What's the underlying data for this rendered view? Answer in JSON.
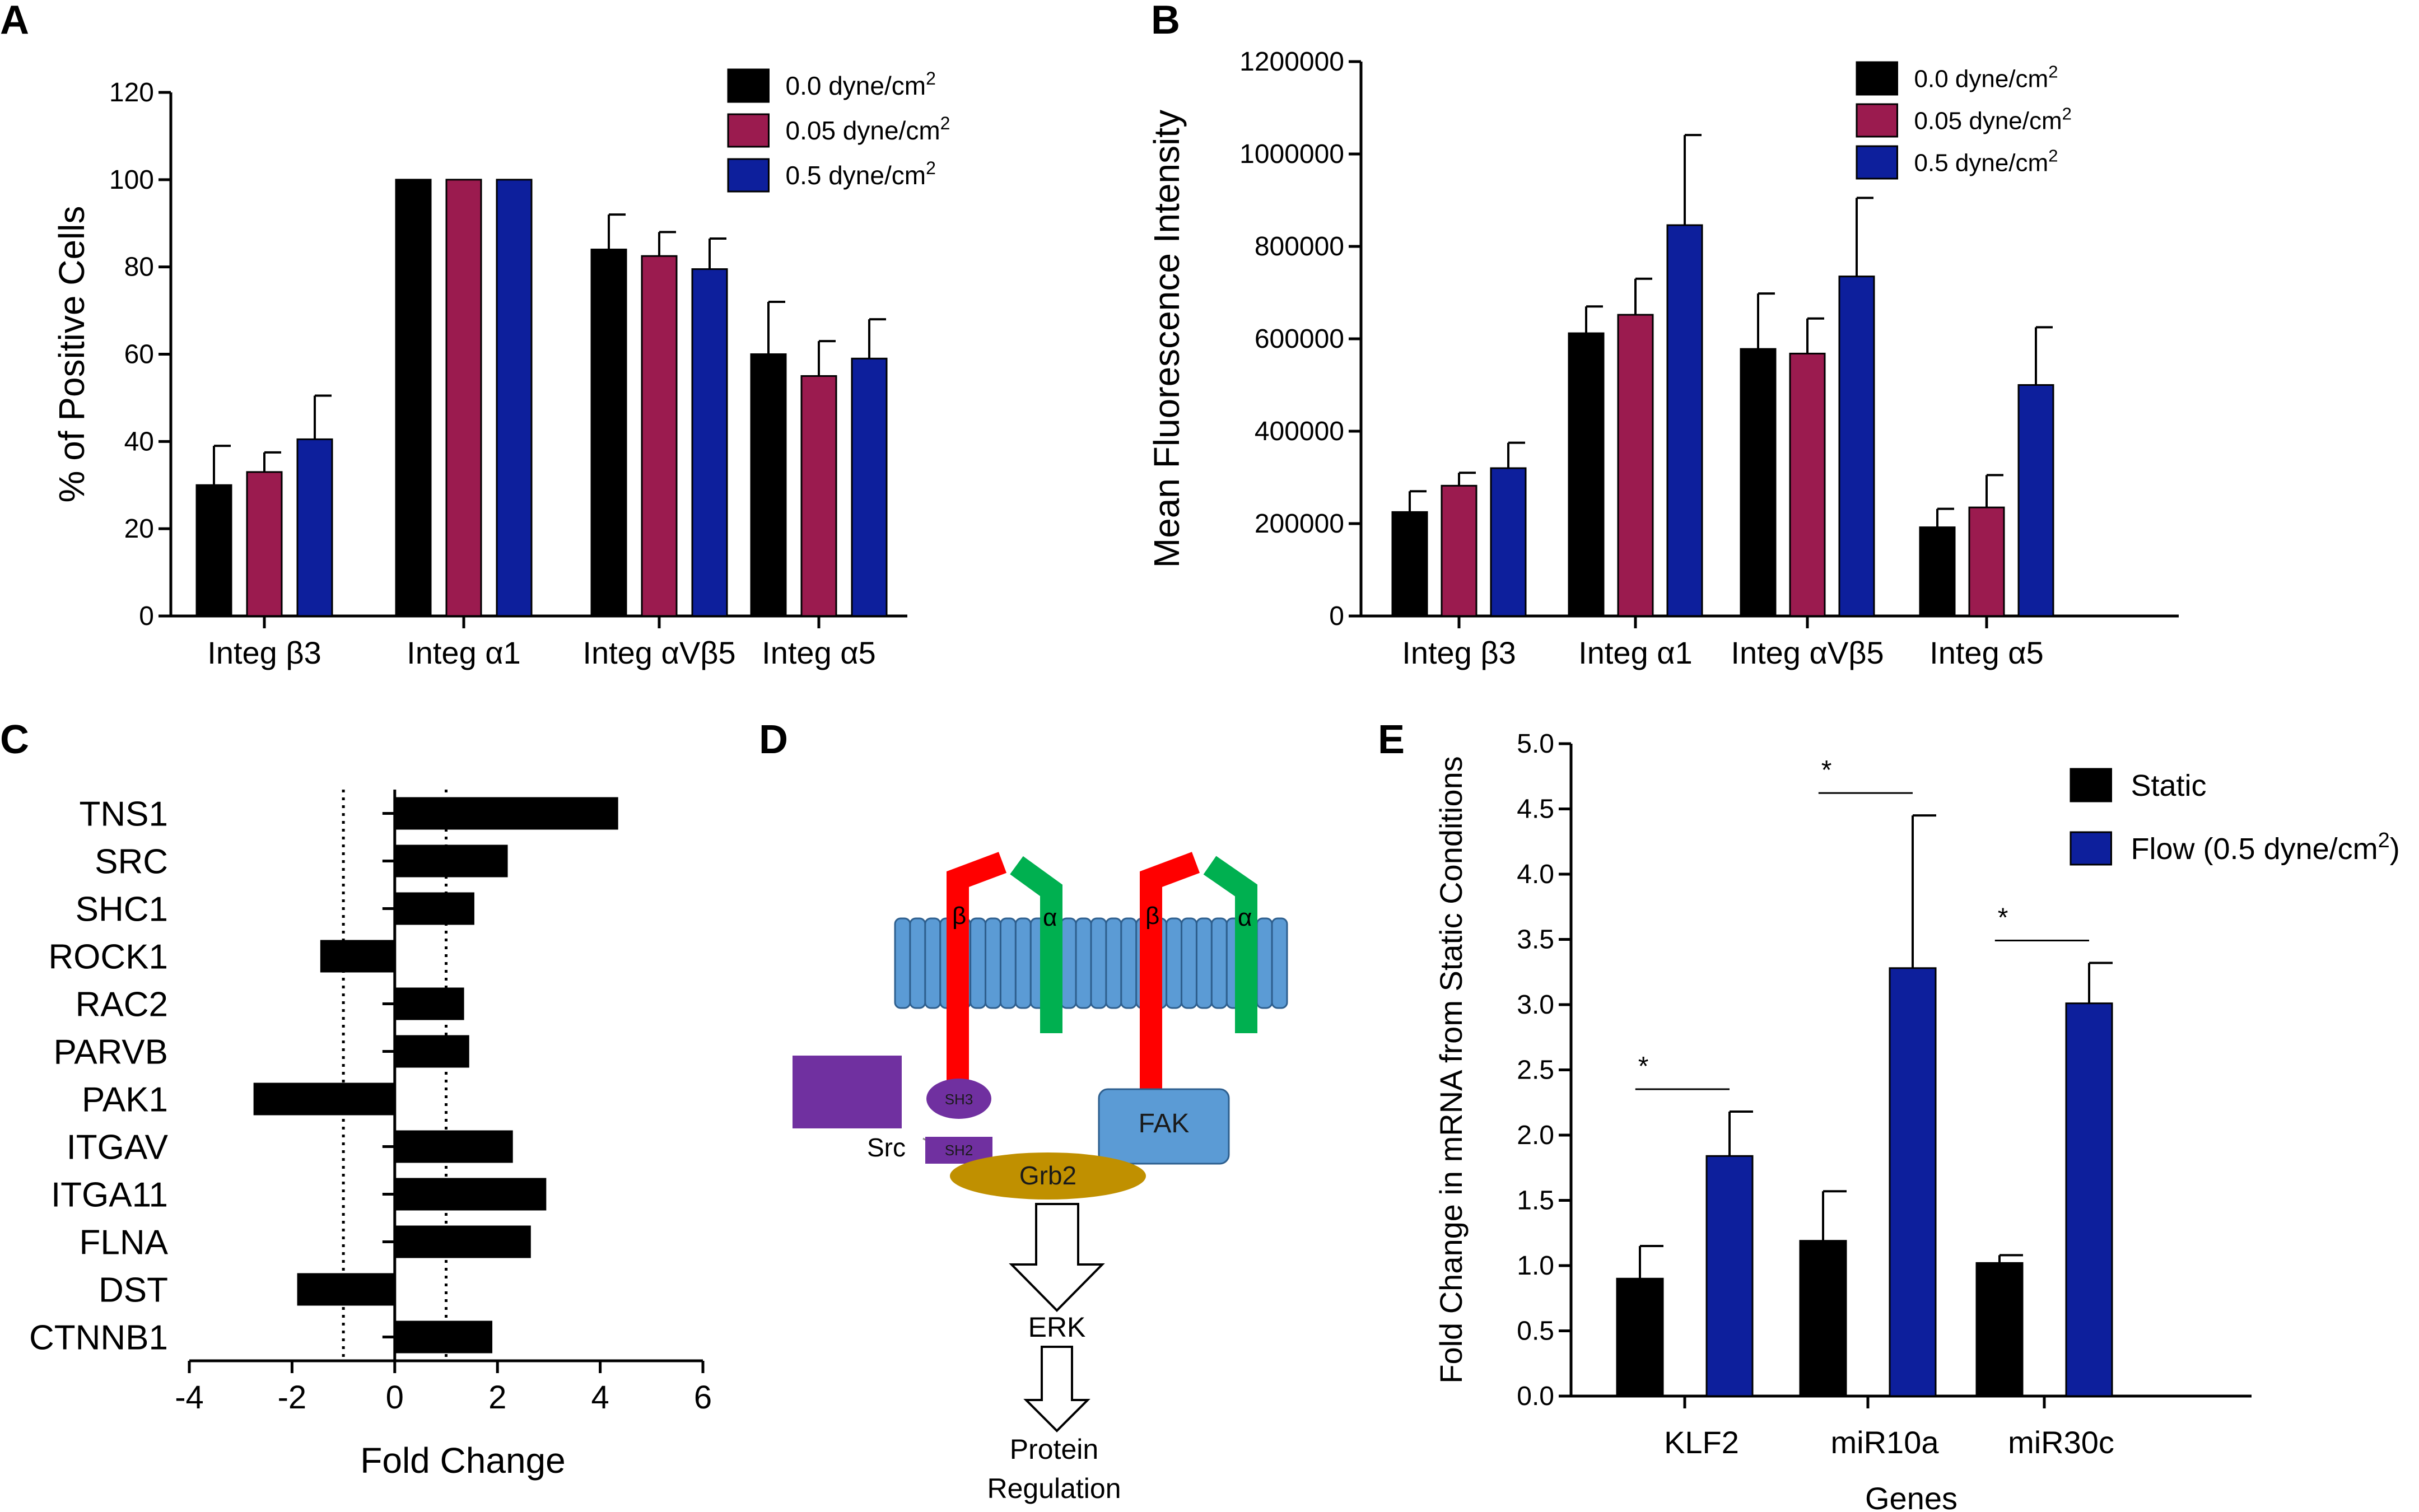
{
  "colors": {
    "black": "#000000",
    "maroon": "#9b1b4f",
    "blue": "#0d1f9c",
    "membrane": "#5b9bd5",
    "membrane_edge": "#2e5f8e",
    "beta": "#ff0000",
    "alpha": "#00b050",
    "src": "#7030a0",
    "fak": "#5b9bd5",
    "grb2": "#c09000"
  },
  "panels": {
    "a": "A",
    "b": "B",
    "c": "C",
    "d": "D",
    "e": "E"
  },
  "chart_data": [
    {
      "id": "A",
      "type": "bar",
      "title": "",
      "ylabel": "% of Positive Cells",
      "xlabel": "",
      "ylim": [
        0,
        120
      ],
      "yticks": [
        "0",
        "20",
        "40",
        "60",
        "80",
        "100",
        "120"
      ],
      "ytick_values": [
        0,
        20,
        40,
        60,
        80,
        100,
        120
      ],
      "categories": [
        "Integ β3",
        "Integ α1",
        "Integ αVβ5",
        "Integ α5"
      ],
      "series": [
        {
          "name": "0.0 dyne/cm",
          "sup": "2",
          "color": "#000000",
          "values": [
            30,
            100,
            84,
            60
          ],
          "errors": [
            9,
            0,
            8,
            12
          ]
        },
        {
          "name": "0.05 dyne/cm",
          "sup": "2",
          "color": "#9b1b4f",
          "values": [
            33,
            100,
            82.5,
            55
          ],
          "errors": [
            4.5,
            0,
            5.5,
            8
          ]
        },
        {
          "name": "0.5 dyne/cm",
          "sup": "2",
          "color": "#0d1f9c",
          "values": [
            40.5,
            100,
            79.5,
            59
          ],
          "errors": [
            10,
            0,
            7,
            9
          ]
        }
      ]
    },
    {
      "id": "B",
      "type": "bar",
      "title": "",
      "ylabel": "Mean Fluorescence Intensity",
      "xlabel": "",
      "ylim": [
        0,
        1200000
      ],
      "yticks": [
        "0",
        "200000",
        "400000",
        "600000",
        "800000",
        "1000000",
        "1200000"
      ],
      "ytick_values": [
        0,
        200000,
        400000,
        600000,
        800000,
        1000000,
        1200000
      ],
      "categories": [
        "Integ β3",
        "Integ α1",
        "Integ αVβ5",
        "Integ α5"
      ],
      "series": [
        {
          "name": "0.0 dyne/cm",
          "sup": "2",
          "color": "#000000",
          "values": [
            225000,
            612000,
            578000,
            192000
          ],
          "errors": [
            45000,
            58000,
            120000,
            40000
          ]
        },
        {
          "name": "0.05 dyne/cm",
          "sup": "2",
          "color": "#9b1b4f",
          "values": [
            282000,
            652000,
            568000,
            235000
          ],
          "errors": [
            28000,
            78000,
            76000,
            70000
          ]
        },
        {
          "name": "0.5 dyne/cm",
          "sup": "2",
          "color": "#0d1f9c",
          "values": [
            320000,
            846000,
            735000,
            500000
          ],
          "errors": [
            55000,
            195000,
            170000,
            125000
          ]
        }
      ]
    },
    {
      "id": "C",
      "type": "bar",
      "orientation": "horizontal",
      "title": "",
      "xlabel": "Fold Change",
      "ylabel": "",
      "xlim": [
        -4,
        6
      ],
      "xticks": [
        "-4",
        "-2",
        "0",
        "2",
        "4",
        "6"
      ],
      "xtick_values": [
        -4,
        -2,
        0,
        2,
        4,
        6
      ],
      "reference_lines": [
        -1,
        1
      ],
      "categories": [
        "TNS1",
        "SRC",
        "SHC1",
        "ROCK1",
        "RAC2",
        "PARVB",
        "PAK1",
        "ITGAV",
        "ITGA11",
        "FLNA",
        "DST",
        "CTNNB1"
      ],
      "values": [
        4.35,
        2.2,
        1.55,
        -1.45,
        1.35,
        1.45,
        -2.75,
        2.3,
        2.95,
        2.65,
        -1.9,
        1.9
      ]
    },
    {
      "id": "E",
      "type": "bar",
      "title": "",
      "ylabel": "Fold Change in mRNA from Static Conditions",
      "xlabel": "Genes",
      "ylim": [
        0,
        5
      ],
      "yticks": [
        "0.0",
        "0.5",
        "1.0",
        "1.5",
        "2.0",
        "2.5",
        "3.0",
        "3.5",
        "4.0",
        "4.5",
        "5.0"
      ],
      "ytick_values": [
        0,
        0.5,
        1,
        1.5,
        2,
        2.5,
        3,
        3.5,
        4,
        4.5,
        5
      ],
      "categories": [
        "KLF2",
        "miR10a",
        "miR30c"
      ],
      "series": [
        {
          "name": "Static",
          "sup": "",
          "suffix": "",
          "color": "#000000",
          "values": [
            0.9,
            1.19,
            1.02
          ],
          "errors": [
            0.25,
            0.38,
            0.06
          ]
        },
        {
          "name": "Flow (0.5 dyne/cm",
          "sup": "2",
          "suffix": ")",
          "color": "#0d1f9c",
          "values": [
            1.84,
            3.28,
            3.01
          ],
          "errors": [
            0.34,
            1.17,
            0.31
          ]
        }
      ],
      "significance": [
        "*",
        "*",
        "*"
      ]
    }
  ],
  "diagram": {
    "beta": "β",
    "alpha": "α",
    "sh3": "SH3",
    "sh2": "SH2",
    "src": "Src",
    "fak": "FAK",
    "grb2": "Grb2",
    "erk": "ERK",
    "protein_line1": "Protein",
    "protein_line2": "Regulation"
  }
}
